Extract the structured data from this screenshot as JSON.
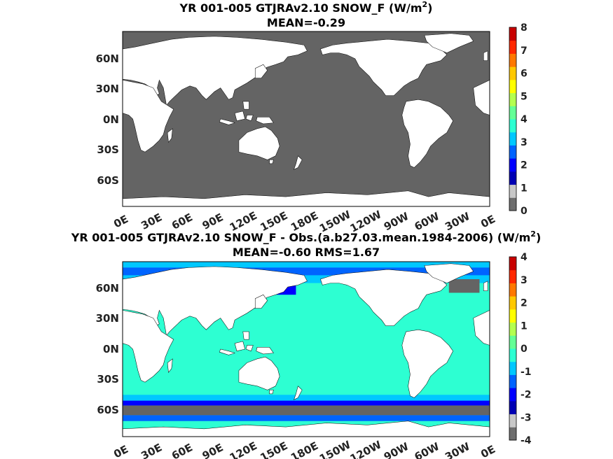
{
  "chart_data": [
    {
      "type": "heatmap",
      "title_prefix": "YR 001-005 GTJRAv2.10  SNOW_F (W/m",
      "title_sup": "2",
      "title_suffix": ")",
      "subtitle": "MEAN=-0.29",
      "x_ticks": [
        "0E",
        "30E",
        "60E",
        "90E",
        "120E",
        "150E",
        "180E",
        "150W",
        "120W",
        "90W",
        "60W",
        "30W",
        "0E"
      ],
      "y_ticks": [
        "60N",
        "30N",
        "0N",
        "30S",
        "60S"
      ],
      "colorbar": {
        "range": [
          0,
          8
        ],
        "ticks": [
          "8",
          "7",
          "6",
          "5",
          "4",
          "3",
          "2",
          "1",
          "0"
        ],
        "colors": [
          "#6e6e6e",
          "#c8c8c8",
          "#0000b4",
          "#0000ff",
          "#0064ff",
          "#00c8ff",
          "#2dffd2",
          "#64ff96",
          "#b4ff50",
          "#ffff00",
          "#ffc800",
          "#ff7800",
          "#ff2800",
          "#c80000"
        ]
      },
      "ocean_color": "#646464",
      "land_color": "#ffffff"
    },
    {
      "type": "heatmap",
      "title_prefix": "YR 001-005 GTJRAv2.10 SNOW_F - Obs.(a.b27.03.mean.1984-2006) (W/m",
      "title_sup": "2",
      "title_suffix": ")",
      "subtitle": "MEAN=-0.60 RMS=1.67",
      "x_ticks": [
        "0E",
        "30E",
        "60E",
        "90E",
        "120E",
        "150E",
        "180E",
        "150W",
        "120W",
        "90W",
        "60W",
        "30W",
        "0E"
      ],
      "y_ticks": [
        "60N",
        "30N",
        "0N",
        "30S",
        "60S"
      ],
      "colorbar": {
        "range": [
          -4,
          4
        ],
        "ticks": [
          "4",
          "3",
          "2",
          "1",
          "0",
          "-1",
          "-2",
          "-3",
          "-4"
        ],
        "colors": [
          "#6e6e6e",
          "#c8c8c8",
          "#0000b4",
          "#0000ff",
          "#0064ff",
          "#00c8ff",
          "#2dffd2",
          "#64ff96",
          "#b4ff50",
          "#ffff00",
          "#ffc800",
          "#ff7800",
          "#ff2800",
          "#c80000"
        ]
      },
      "ocean_color": "#2dffd2",
      "land_color": "#ffffff",
      "band_colors": {
        "southern_ocean": "#646464",
        "deficit_strong": "#0000ff",
        "deficit_mid": "#0064ff",
        "deficit_light": "#00c8ff"
      }
    }
  ]
}
